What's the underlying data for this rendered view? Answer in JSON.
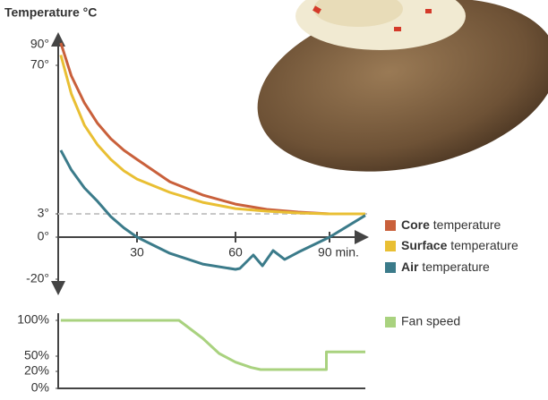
{
  "chart_data": [
    {
      "type": "line",
      "title": "Temperature °C",
      "x": [
        1,
        5,
        10,
        15,
        20,
        25,
        30,
        40,
        50,
        60,
        70,
        80,
        90,
        100
      ],
      "series": [
        {
          "name": "Core temperature",
          "color": "#c9603b",
          "values": [
            92,
            65.2,
            53,
            43.8,
            36.9,
            31.7,
            27.6,
            17.5,
            11.5,
            7.4,
            5,
            3.8,
            3,
            3
          ]
        },
        {
          "name": "Surface temperature",
          "color": "#e9bf33",
          "values": [
            80,
            57.1,
            43,
            34.1,
            27.6,
            22.4,
            18.7,
            12.7,
            8.2,
            5.4,
            4.2,
            3.4,
            3,
            3
          ]
        }
      ],
      "extra_series": {
        "name": "Air temperature",
        "color": "#3b7b8a",
        "x": [
          1,
          5,
          10,
          15,
          20,
          25,
          30,
          40,
          50,
          60,
          61.4,
          65.7,
          68.6,
          72,
          75.7,
          80,
          90,
          100
        ],
        "values": [
          31.7,
          22.8,
          14.7,
          8.6,
          2.65,
          1.2,
          0,
          -7.7,
          -12.8,
          -15.3,
          -14.9,
          -8.5,
          -13.6,
          -6.4,
          -10.6,
          -7.2,
          0,
          2.8
        ]
      },
      "xlim": [
        0,
        100
      ],
      "xticks": [
        30,
        60,
        {
          "value": 90,
          "label": "90 min."
        }
      ],
      "ylim": [
        -25,
        100
      ],
      "yticks": [
        {
          "value": -20,
          "label": "-20°"
        },
        {
          "value": 0,
          "label": "0°"
        },
        {
          "value": 3,
          "label": "3°"
        },
        {
          "value": 70,
          "label": "70°"
        },
        {
          "value": 90,
          "label": "90°"
        }
      ],
      "reference_line": 3
    },
    {
      "type": "line",
      "x": [
        1,
        42.8,
        50,
        55,
        60,
        65,
        68,
        89,
        89,
        100
      ],
      "series": [
        {
          "name": "Fan speed",
          "color": "#a9d27f",
          "values": [
            100,
            100,
            75,
            53.8,
            38.2,
            27.6,
            23.5,
            23.5,
            56,
            56
          ]
        }
      ],
      "xlim": [
        0,
        100
      ],
      "ylim": [
        0,
        100
      ],
      "yticks": [
        {
          "value": 0,
          "label": "0%"
        },
        {
          "value": 20,
          "label": "20%"
        },
        {
          "value": 50,
          "label": "50%"
        },
        {
          "value": 100,
          "label": "100%"
        }
      ]
    }
  ]
}
